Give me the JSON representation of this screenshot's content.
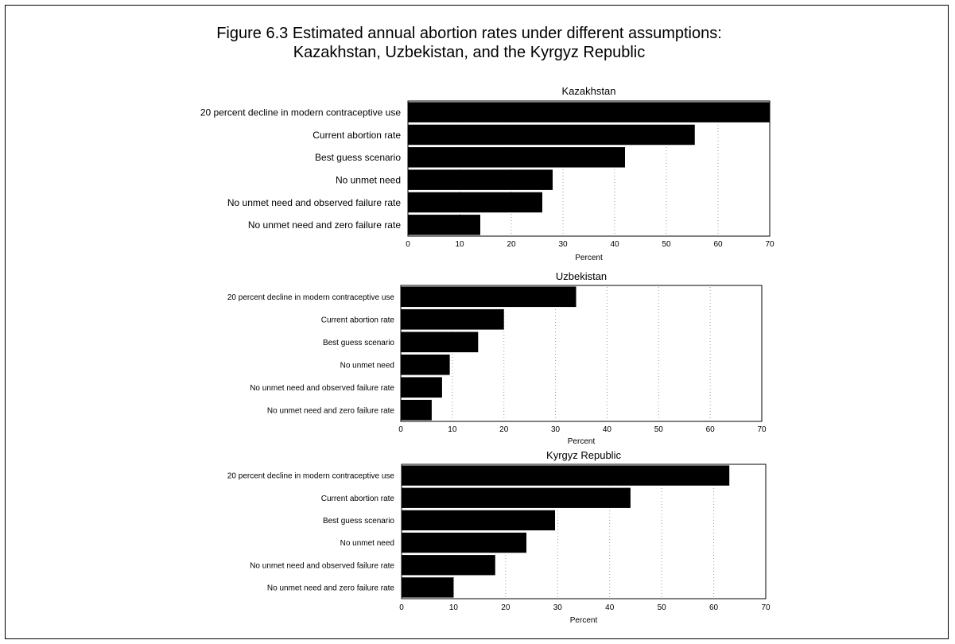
{
  "figure": {
    "title_line1": "Figure 6.3  Estimated annual abortion rates under different assumptions:",
    "title_line2": "Kazakhstan, Uzbekistan, and the Kyrgyz Republic"
  },
  "colors": {
    "bar": "#000000",
    "grid": "#9a9a9a",
    "frame": "#000000"
  },
  "chart_data": [
    {
      "type": "bar",
      "orientation": "horizontal",
      "title": "Kazakhstan",
      "categories": [
        "20 percent decline in modern contraceptive use",
        "Current abortion rate",
        "Best guess scenario",
        "No unmet need",
        "No unmet need and observed failure rate",
        "No unmet need and zero failure rate"
      ],
      "values": [
        70,
        55.5,
        42,
        28,
        26,
        14
      ],
      "xlabel": "Percent",
      "xlim": [
        0,
        70
      ],
      "ticks": [
        "0",
        "10",
        "20",
        "30",
        "40",
        "50",
        "60",
        "70"
      ],
      "grid": "vertical dotted"
    },
    {
      "type": "bar",
      "orientation": "horizontal",
      "title": "Uzbekistan",
      "categories": [
        "20 percent decline in modern contraceptive use",
        "Current abortion rate",
        "Best guess scenario",
        "No unmet need",
        "No unmet need and observed failure rate",
        "No unmet need and zero failure rate"
      ],
      "values": [
        34,
        20,
        15,
        9.5,
        8,
        6
      ],
      "xlabel": "Percent",
      "xlim": [
        0,
        70
      ],
      "ticks": [
        "0",
        "10",
        "20",
        "30",
        "40",
        "50",
        "60",
        "70"
      ],
      "grid": "vertical dotted"
    },
    {
      "type": "bar",
      "orientation": "horizontal",
      "title": "Kyrgyz Republic",
      "categories": [
        "20 percent decline in modern contraceptive use",
        "Current abortion rate",
        "Best guess scenario",
        "No unmet need",
        "No unmet need and observed failure rate",
        "No unmet need and zero failure rate"
      ],
      "values": [
        63,
        44,
        29.5,
        24,
        18,
        10
      ],
      "xlabel": "Percent",
      "xlim": [
        0,
        70
      ],
      "ticks": [
        "0",
        "10",
        "20",
        "30",
        "40",
        "50",
        "60",
        "70"
      ],
      "grid": "vertical dotted"
    }
  ]
}
